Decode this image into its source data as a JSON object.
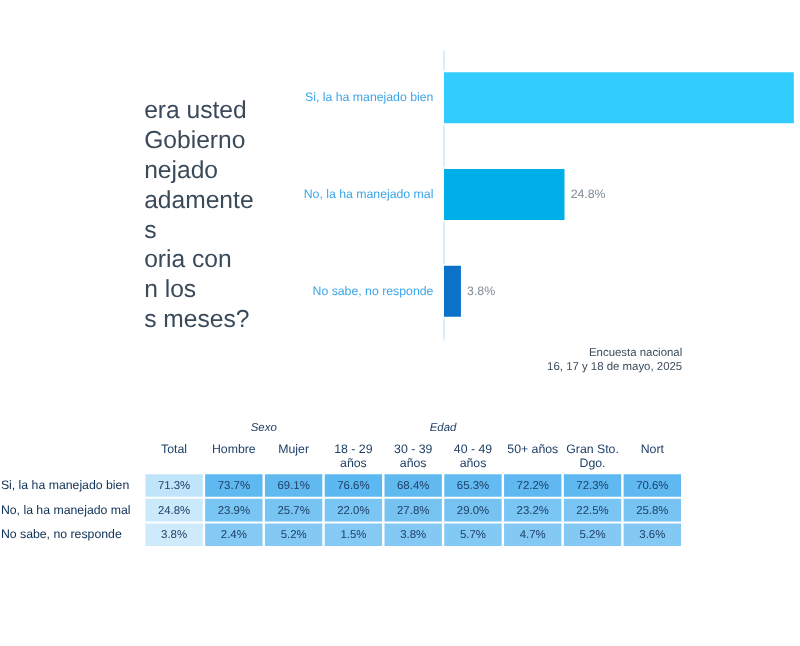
{
  "chart_data": [
    {
      "type": "bar",
      "orientation": "horizontal",
      "categories": [
        "Si, la ha manejado bien",
        "No, la ha manejado mal",
        "No sabe, no responde"
      ],
      "values": [
        71.3,
        24.8,
        3.8
      ],
      "colors": [
        "#33ccff",
        "#00aee8",
        "#0b72c8"
      ],
      "value_labels": [
        null,
        "24.8%",
        "3.8%"
      ],
      "annotations": [
        "era usted",
        "Gobierno",
        "nejado",
        "adamente",
        "s",
        "oria con",
        "n los",
        "s meses?"
      ]
    },
    {
      "type": "heatmap",
      "categories": [
        "Total",
        "Hombre",
        "Mujer",
        "18 - 29 años",
        "30 - 39 años",
        "40 - 49 años",
        "50+ años",
        "Gran Sto. Dgo.",
        "Nort"
      ],
      "y_categories": [
        "Si, la ha manejado bien",
        "No, la ha manejado mal",
        "No sabe, no responde"
      ],
      "cells": [
        [
          71.3,
          73.7,
          69.1,
          76.6,
          68.4,
          65.3,
          72.2,
          72.3,
          70.6
        ],
        [
          24.8,
          23.9,
          25.7,
          22.0,
          27.8,
          29.0,
          23.2,
          22.5,
          25.8
        ],
        [
          3.8,
          2.4,
          5.2,
          1.5,
          3.8,
          5.7,
          4.7,
          5.2,
          3.6
        ]
      ],
      "cell_labels": [
        [
          "71.3%",
          "73.7%",
          "69.1%",
          "76.6%",
          "68.4%",
          "65.3%",
          "72.2%",
          "72.3%",
          "70.6%"
        ],
        [
          "24.8%",
          "23.9%",
          "25.7%",
          "22.0%",
          "27.8%",
          "29.0%",
          "23.2%",
          "22.5%",
          "25.8%"
        ],
        [
          "3.8%",
          "2.4%",
          "5.2%",
          "1.5%",
          "3.8%",
          "5.7%",
          "4.7%",
          "5.2%",
          "3.6%"
        ]
      ],
      "colors": [
        "#bfe4fa",
        "#5cb8f0",
        "#5cb8f0",
        "#5cb8f0",
        "#5cb8f0",
        "#5cb8f0",
        "#5cb8f0",
        "#5cb8f0",
        "#5cb8f0"
      ],
      "annotations": [
        "Encuesta nacional",
        "16, 17 y 18 de mayo, 2025",
        "Sexo",
        "Edad"
      ]
    }
  ]
}
